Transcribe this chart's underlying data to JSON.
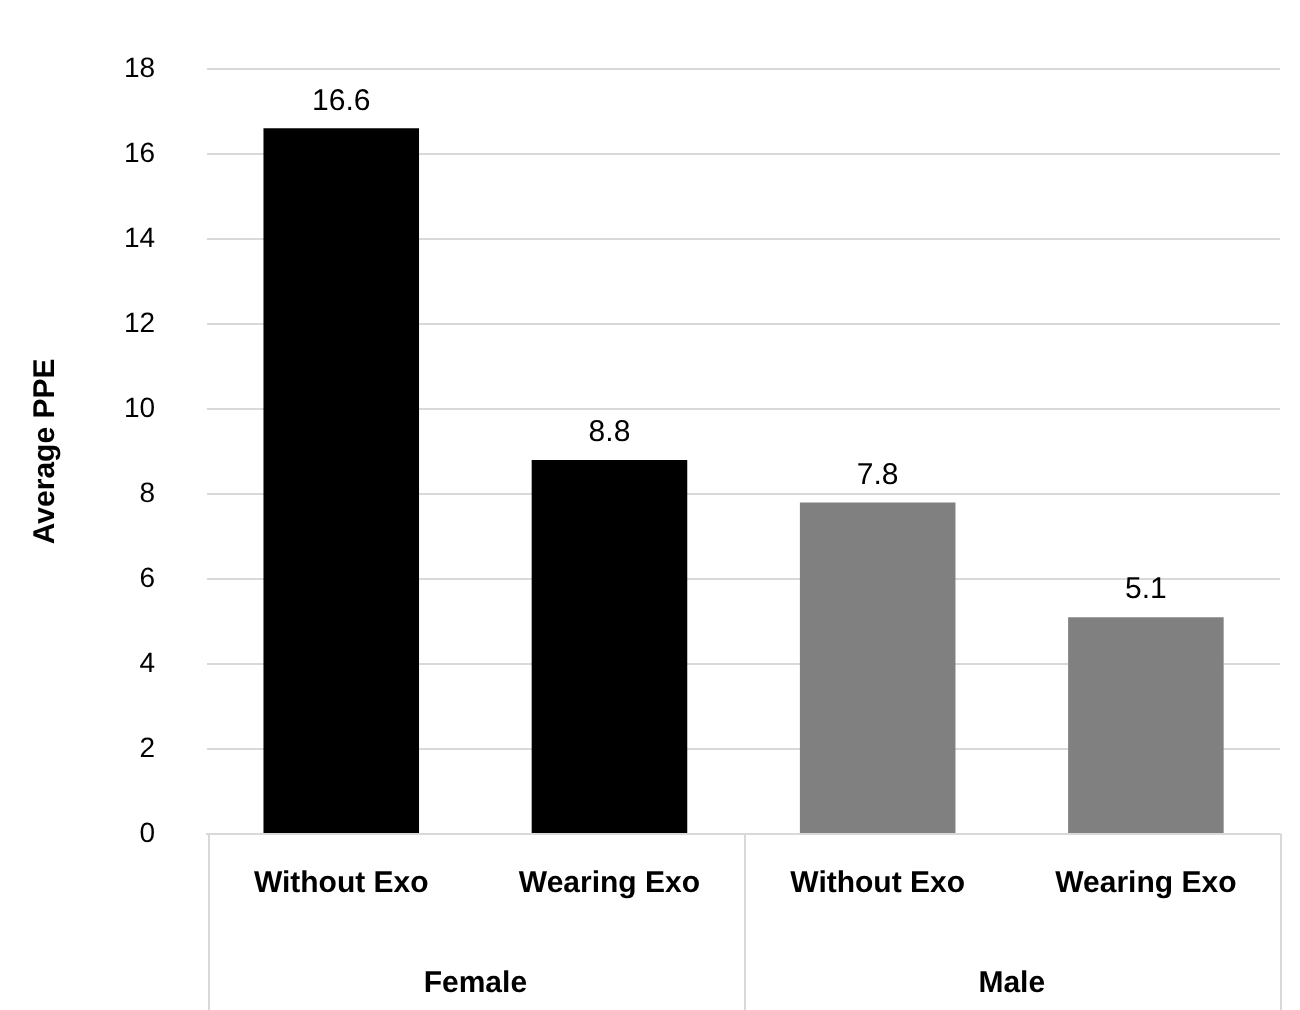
{
  "chart_data": {
    "type": "bar",
    "ylabel": "Average PPE",
    "categories": [
      "Without Exo",
      "Wearing Exo",
      "Without Exo",
      "Wearing Exo"
    ],
    "values": [
      16.6,
      8.8,
      7.8,
      5.1
    ],
    "colors": [
      "#000000",
      "#000000",
      "#808080",
      "#808080"
    ],
    "ylim": [
      0,
      18
    ],
    "yticks": [
      0,
      2,
      4,
      6,
      8,
      10,
      12,
      14,
      16,
      18
    ],
    "grid": "y",
    "data_labels": true,
    "legend": false,
    "annotations": [
      "Female",
      "Male"
    ]
  }
}
